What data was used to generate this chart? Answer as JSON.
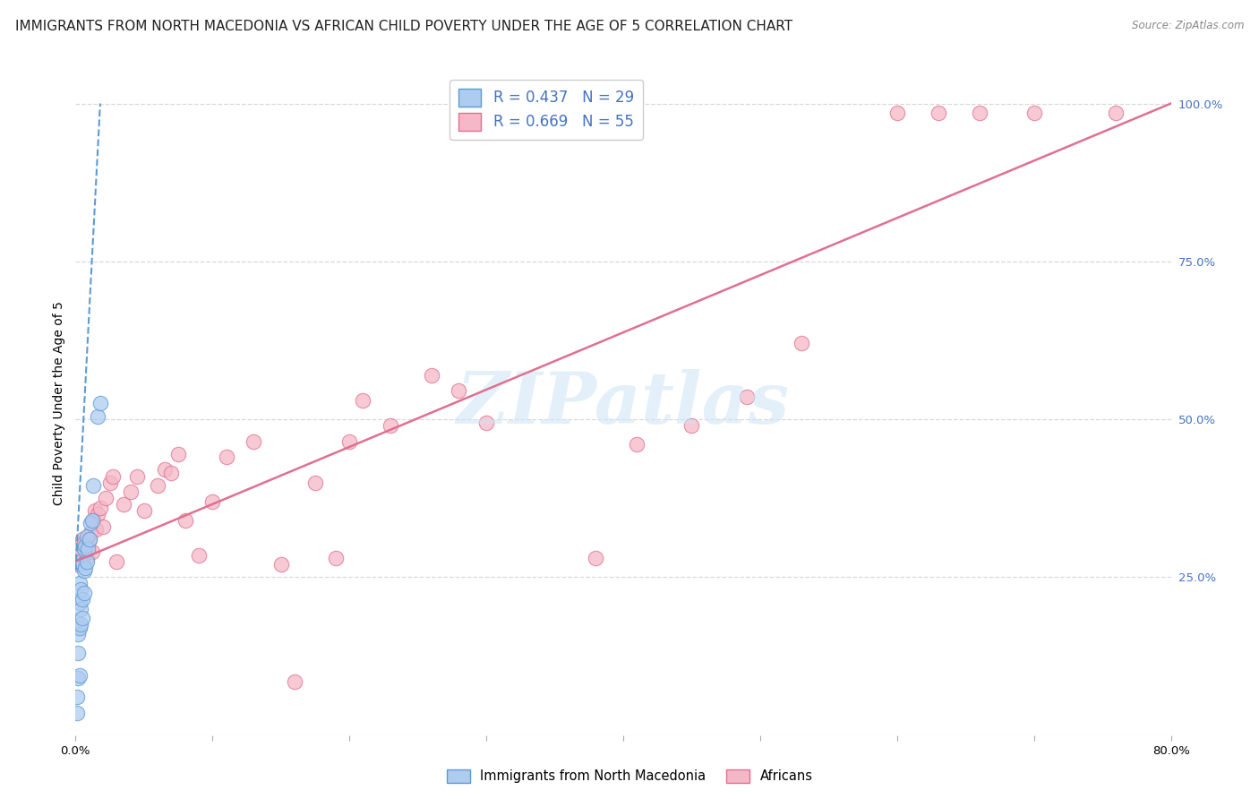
{
  "title": "IMMIGRANTS FROM NORTH MACEDONIA VS AFRICAN CHILD POVERTY UNDER THE AGE OF 5 CORRELATION CHART",
  "source": "Source: ZipAtlas.com",
  "ylabel": "Child Poverty Under the Age of 5",
  "xlim": [
    0.0,
    0.8
  ],
  "ylim": [
    0.0,
    1.05
  ],
  "ytick_vals": [
    0.25,
    0.5,
    0.75,
    1.0
  ],
  "xtick_vals": [
    0.0,
    0.1,
    0.2,
    0.3,
    0.4,
    0.5,
    0.6,
    0.7,
    0.8
  ],
  "legend_entries": [
    {
      "label": "Immigrants from North Macedonia",
      "R": 0.437,
      "N": 29,
      "color": "#aecbf0",
      "edge_color": "#5b9bd5",
      "line_color": "#5b9bd5"
    },
    {
      "label": "Africans",
      "R": 0.669,
      "N": 55,
      "color": "#f4b8c8",
      "edge_color": "#e07090",
      "line_color": "#e07090"
    }
  ],
  "watermark_text": "ZIPatlas",
  "blue_scatter_x": [
    0.001,
    0.001,
    0.002,
    0.002,
    0.002,
    0.003,
    0.003,
    0.003,
    0.003,
    0.004,
    0.004,
    0.004,
    0.005,
    0.005,
    0.005,
    0.006,
    0.006,
    0.006,
    0.007,
    0.007,
    0.008,
    0.008,
    0.009,
    0.01,
    0.011,
    0.012,
    0.013,
    0.016,
    0.018
  ],
  "blue_scatter_y": [
    0.035,
    0.06,
    0.09,
    0.13,
    0.16,
    0.095,
    0.17,
    0.21,
    0.24,
    0.175,
    0.2,
    0.23,
    0.185,
    0.215,
    0.27,
    0.225,
    0.26,
    0.295,
    0.265,
    0.3,
    0.275,
    0.315,
    0.295,
    0.31,
    0.335,
    0.34,
    0.395,
    0.505,
    0.525
  ],
  "pink_scatter_x": [
    0.001,
    0.002,
    0.003,
    0.004,
    0.005,
    0.006,
    0.007,
    0.008,
    0.009,
    0.01,
    0.011,
    0.012,
    0.013,
    0.014,
    0.015,
    0.016,
    0.018,
    0.02,
    0.022,
    0.025,
    0.027,
    0.03,
    0.035,
    0.04,
    0.045,
    0.05,
    0.06,
    0.065,
    0.07,
    0.075,
    0.08,
    0.09,
    0.1,
    0.11,
    0.13,
    0.15,
    0.16,
    0.175,
    0.19,
    0.2,
    0.21,
    0.23,
    0.26,
    0.28,
    0.3,
    0.38,
    0.41,
    0.45,
    0.49,
    0.53,
    0.6,
    0.63,
    0.66,
    0.7,
    0.76
  ],
  "pink_scatter_y": [
    0.27,
    0.285,
    0.295,
    0.275,
    0.31,
    0.305,
    0.295,
    0.28,
    0.3,
    0.31,
    0.32,
    0.29,
    0.34,
    0.355,
    0.325,
    0.35,
    0.36,
    0.33,
    0.375,
    0.4,
    0.41,
    0.275,
    0.365,
    0.385,
    0.41,
    0.355,
    0.395,
    0.42,
    0.415,
    0.445,
    0.34,
    0.285,
    0.37,
    0.44,
    0.465,
    0.27,
    0.085,
    0.4,
    0.28,
    0.465,
    0.53,
    0.49,
    0.57,
    0.545,
    0.495,
    0.28,
    0.46,
    0.49,
    0.535,
    0.62,
    0.985,
    0.985,
    0.985,
    0.985,
    0.985
  ],
  "pink_line_x0": 0.0,
  "pink_line_y0": 0.275,
  "pink_line_x1": 0.8,
  "pink_line_y1": 1.0,
  "blue_line_x0": 0.0,
  "blue_line_y0": 0.26,
  "blue_line_x1": 0.018,
  "blue_line_y1": 1.0,
  "title_fontsize": 11,
  "axis_label_fontsize": 10,
  "tick_fontsize": 9.5,
  "legend_fontsize": 12,
  "background_color": "#ffffff",
  "grid_color": "#d8d8d8",
  "title_color": "#222222",
  "source_color": "#888888",
  "tick_color": "#4472c4"
}
